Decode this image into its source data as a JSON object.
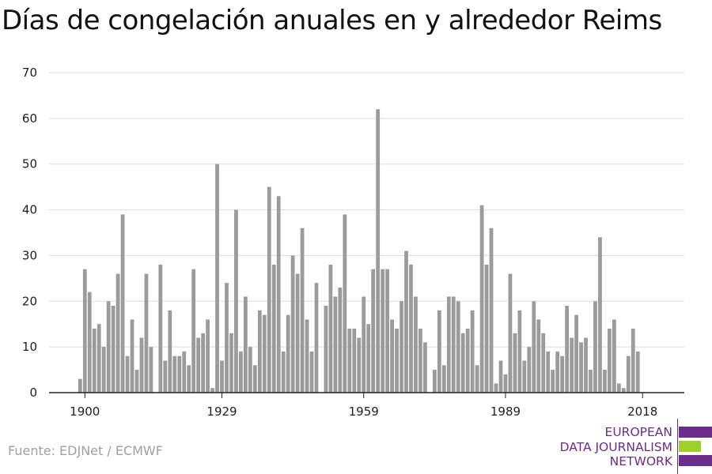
{
  "title": "Días de congelación anuales en y alrededor Reims",
  "source": "Fuente: EDJNet / ECMWF",
  "logo": {
    "lines": [
      "EUROPEAN",
      "DATA JOURNALISM",
      "NETWORK"
    ],
    "colors": {
      "purple": "#6b2d8a",
      "green": "#9dd12a"
    }
  },
  "chart_data": {
    "type": "bar",
    "title": "Días de congelación anuales en y alrededor Reims",
    "xlabel": "",
    "ylabel": "",
    "x": [
      1899,
      1900,
      1901,
      1902,
      1903,
      1904,
      1905,
      1906,
      1907,
      1908,
      1909,
      1910,
      1911,
      1912,
      1913,
      1914,
      1915,
      1916,
      1917,
      1918,
      1919,
      1920,
      1921,
      1922,
      1923,
      1924,
      1925,
      1926,
      1927,
      1928,
      1929,
      1930,
      1931,
      1932,
      1933,
      1934,
      1935,
      1936,
      1937,
      1938,
      1939,
      1940,
      1941,
      1942,
      1943,
      1944,
      1945,
      1946,
      1947,
      1948,
      1949,
      1950,
      1951,
      1952,
      1953,
      1954,
      1955,
      1956,
      1957,
      1958,
      1959,
      1960,
      1961,
      1962,
      1963,
      1964,
      1965,
      1966,
      1967,
      1968,
      1969,
      1970,
      1971,
      1972,
      1973,
      1974,
      1975,
      1976,
      1977,
      1978,
      1979,
      1980,
      1981,
      1982,
      1983,
      1984,
      1985,
      1986,
      1987,
      1988,
      1989,
      1990,
      1991,
      1992,
      1993,
      1994,
      1995,
      1996,
      1997,
      1998,
      1999,
      2000,
      2001,
      2002,
      2003,
      2004,
      2005,
      2006,
      2007,
      2008,
      2009,
      2010,
      2011,
      2012,
      2013,
      2014,
      2015,
      2016,
      2017,
      2018
    ],
    "values": [
      3,
      27,
      22,
      14,
      15,
      10,
      20,
      19,
      26,
      39,
      8,
      16,
      5,
      12,
      26,
      10,
      0,
      28,
      7,
      18,
      8,
      8,
      9,
      6,
      27,
      12,
      13,
      16,
      1,
      50,
      7,
      24,
      13,
      40,
      9,
      21,
      10,
      6,
      18,
      17,
      45,
      28,
      43,
      9,
      17,
      30,
      26,
      36,
      16,
      9,
      24,
      0,
      19,
      28,
      21,
      23,
      39,
      14,
      14,
      12,
      21,
      15,
      27,
      62,
      27,
      27,
      16,
      14,
      20,
      31,
      28,
      21,
      14,
      11,
      0,
      5,
      18,
      6,
      21,
      21,
      20,
      13,
      14,
      18,
      6,
      41,
      28,
      36,
      2,
      7,
      4,
      26,
      13,
      18,
      7,
      10,
      20,
      16,
      13,
      9,
      5,
      9,
      8,
      19,
      12,
      17,
      11,
      12,
      5,
      20,
      34,
      5,
      14,
      16,
      2,
      1,
      8,
      14,
      9,
      0
    ],
    "xticks": [
      1900,
      1929,
      1959,
      1989,
      2018
    ],
    "yticks": [
      0,
      10,
      20,
      30,
      40,
      50,
      60,
      70
    ],
    "ylim": [
      0,
      70
    ],
    "grid": true,
    "colors": {
      "bar": "#9b9b9b",
      "grid": "#dddddd",
      "axis": "#222222",
      "text": "#222222"
    }
  }
}
